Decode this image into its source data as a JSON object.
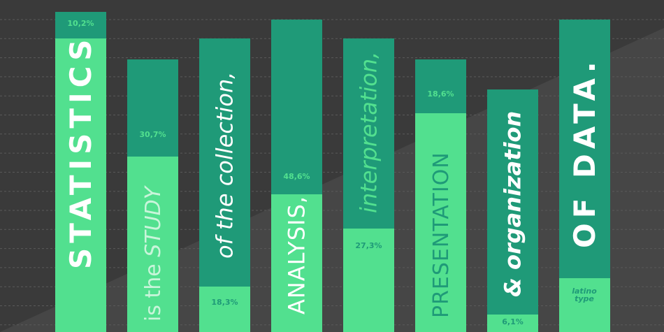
{
  "columns": [
    {
      "percent": "10,2%",
      "text": [
        "STATISTICS"
      ]
    },
    {
      "percent": "30,7%",
      "text": [
        "is the ",
        "STUDY"
      ]
    },
    {
      "percent": "18,3%",
      "text": [
        "of the collection,"
      ]
    },
    {
      "percent": "48,6%",
      "text": [
        "ANALYSIS,"
      ]
    },
    {
      "percent": "27,3%",
      "text": [
        "interpretation,"
      ]
    },
    {
      "percent": "18,6%",
      "text": [
        "PRESENTATION"
      ]
    },
    {
      "percent": "6,1%",
      "text": [
        "& organization"
      ]
    },
    {
      "percent": null,
      "text": [
        "OF DATA."
      ]
    }
  ],
  "logo": [
    "latino",
    "type"
  ]
}
